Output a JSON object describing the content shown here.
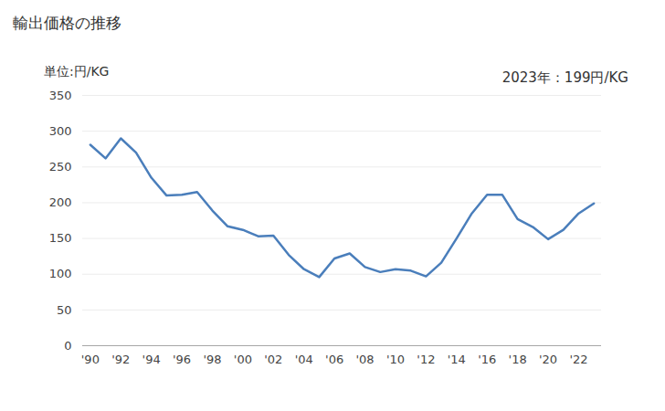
{
  "chart_data": {
    "type": "line",
    "title": "輸出価格の推移",
    "ylabel": "単位:円/KG",
    "annotation": "2023年：199円/KG",
    "x": [
      1990,
      1991,
      1992,
      1993,
      1994,
      1995,
      1996,
      1997,
      1998,
      1999,
      2000,
      2001,
      2002,
      2003,
      2004,
      2005,
      2006,
      2007,
      2008,
      2009,
      2010,
      2011,
      2012,
      2013,
      2014,
      2015,
      2016,
      2017,
      2018,
      2019,
      2020,
      2021,
      2022,
      2023
    ],
    "values": [
      281,
      262,
      290,
      270,
      235,
      210,
      211,
      215,
      189,
      167,
      162,
      153,
      154,
      127,
      107,
      96,
      122,
      129,
      110,
      103,
      107,
      105,
      97,
      116,
      150,
      185,
      211,
      211,
      177,
      166,
      149,
      162,
      185,
      199
    ],
    "color": "#4a7ebb",
    "xlim": [
      1989.5,
      2023.5
    ],
    "xticks": [
      {
        "value": 1990,
        "label": "'90"
      },
      {
        "value": 1992,
        "label": "'92"
      },
      {
        "value": 1994,
        "label": "'94"
      },
      {
        "value": 1996,
        "label": "'96"
      },
      {
        "value": 1998,
        "label": "'98"
      },
      {
        "value": 2000,
        "label": "'00"
      },
      {
        "value": 2002,
        "label": "'02"
      },
      {
        "value": 2004,
        "label": "'04"
      },
      {
        "value": 2006,
        "label": "'06"
      },
      {
        "value": 2008,
        "label": "'08"
      },
      {
        "value": 2010,
        "label": "'10"
      },
      {
        "value": 2012,
        "label": "'12"
      },
      {
        "value": 2014,
        "label": "'14"
      },
      {
        "value": 2016,
        "label": "'16"
      },
      {
        "value": 2018,
        "label": "'18"
      },
      {
        "value": 2020,
        "label": "'20"
      },
      {
        "value": 2022,
        "label": "'22"
      }
    ],
    "ylim": [
      0,
      350
    ],
    "yticks": [
      0,
      50,
      100,
      150,
      200,
      250,
      300,
      350
    ],
    "grid": true
  }
}
